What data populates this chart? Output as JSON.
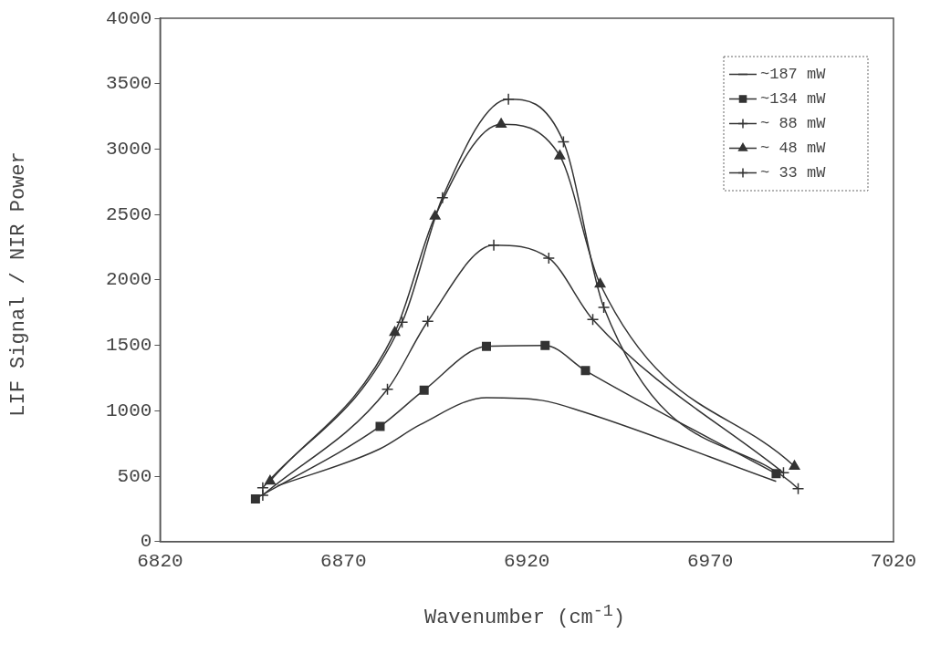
{
  "chart_data": {
    "type": "line",
    "xlabel": "Wavenumber (cm$^{-1}$)",
    "ylabel": "LIF Signal / NIR Power",
    "xlim": [
      6820,
      7020
    ],
    "xticks": [
      6820,
      6870,
      6920,
      6970,
      7020
    ],
    "ylim": [
      0,
      4000
    ],
    "yticks": [
      0,
      500,
      1000,
      1500,
      2000,
      2500,
      3000,
      3500,
      4000
    ],
    "grid": false,
    "legend": "top right",
    "series": [
      {
        "name": "~187 mW",
        "color": "#333333",
        "marker": "none",
        "x": [
          6852,
          6880,
          6891,
          6909,
          6924,
          6935,
          6988
        ],
        "values": [
          426,
          710,
          895,
          1100,
          1080,
          995,
          460
        ]
      },
      {
        "name": "~134 mW",
        "color": "#333333",
        "marker": "square",
        "x": [
          6846,
          6880,
          6892,
          6909,
          6925,
          6936,
          6988
        ],
        "values": [
          327,
          881,
          1158,
          1492,
          1499,
          1307,
          519
        ]
      },
      {
        "name": "~ 88 mW",
        "color": "#333333",
        "marker": "cross",
        "x": [
          6848,
          6882,
          6893,
          6911,
          6926,
          6938,
          6990
        ],
        "values": [
          355,
          1165,
          1684,
          2266,
          2167,
          1698,
          526
        ]
      },
      {
        "name": "~ 48 mW",
        "color": "#333333",
        "marker": "triangle",
        "x": [
          6850,
          6884,
          6895,
          6913,
          6929,
          6940,
          6993
        ],
        "values": [
          462,
          1599,
          2487,
          3190,
          2948,
          1968,
          575
        ]
      },
      {
        "name": "~ 33 mW",
        "color": "#333333",
        "marker": "cross",
        "x": [
          6848,
          6886,
          6897,
          6915,
          6930,
          6941,
          6994
        ],
        "values": [
          412,
          1677,
          2629,
          3382,
          3055,
          1790,
          405
        ]
      }
    ]
  }
}
